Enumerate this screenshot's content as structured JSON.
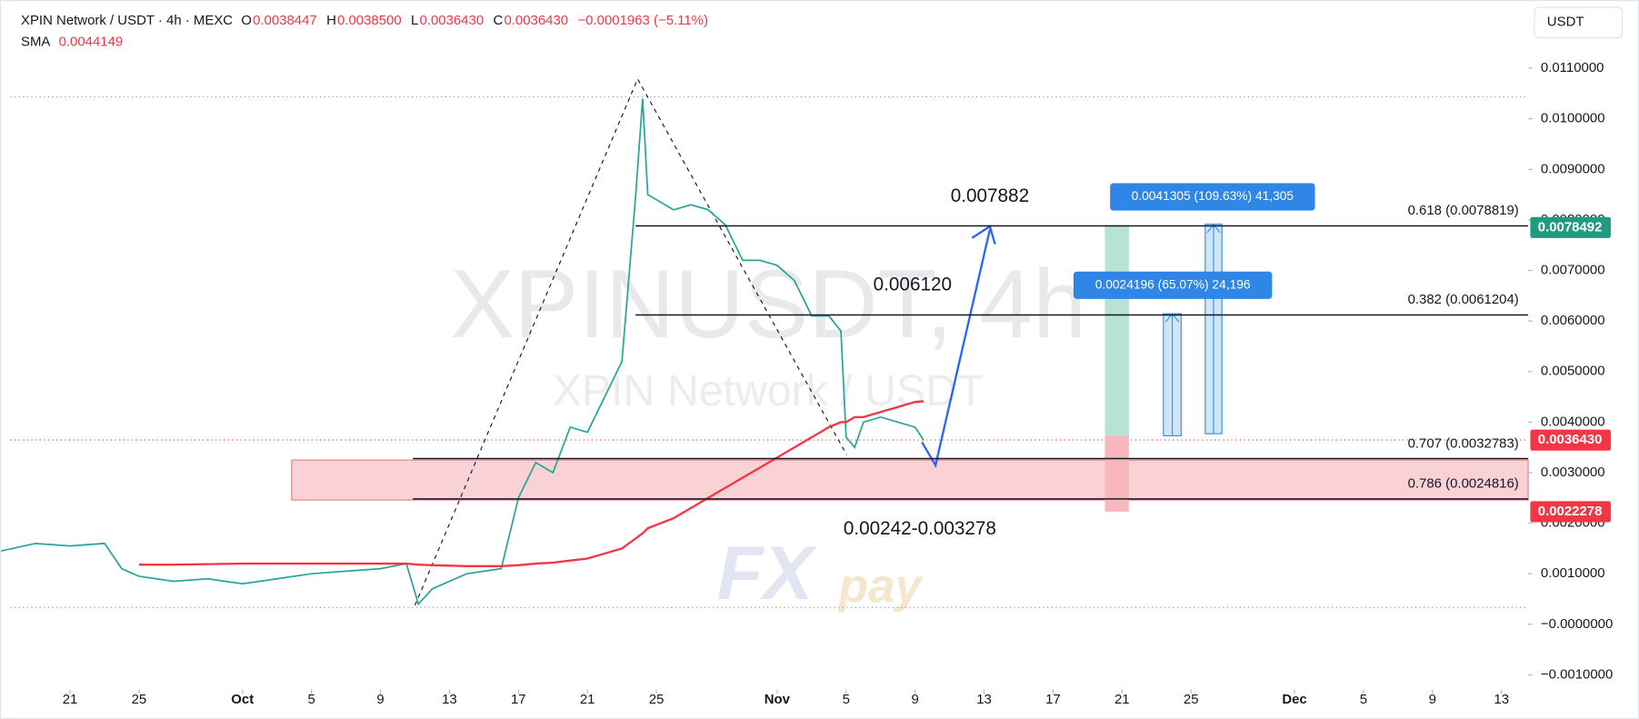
{
  "chart_data": {
    "type": "line",
    "title": "XPIN Network / USDT · 4h · MEXC",
    "ohlc": [
      {
        "key": "O",
        "value": "0.0038447"
      },
      {
        "key": "H",
        "value": "0.0038500"
      },
      {
        "key": "L",
        "value": "0.0036430"
      },
      {
        "key": "C",
        "value": "0.0036430"
      }
    ],
    "change": "−0.0001963 (−5.11%)",
    "indicator_value": "0.0044149",
    "currency": "USDT",
    "watermark": [
      "XPINUSDT, 4h",
      "XPIN Network / USDT"
    ],
    "logo": [
      "FX",
      "pay"
    ],
    "x": [
      -14,
      -12,
      -10,
      -8,
      -7,
      -6,
      -4,
      -2,
      0,
      2,
      4,
      6,
      8,
      9.5,
      10.2,
      11,
      13,
      15,
      16,
      17,
      18,
      19,
      20,
      21,
      22,
      22.8,
      23.2,
      23.5,
      25,
      26,
      27,
      28,
      29,
      30,
      31,
      32,
      33,
      34,
      34.7,
      35,
      35.5,
      36,
      37,
      38,
      39,
      39.5
    ],
    "series": [
      {
        "color": "#26a69a",
        "values": [
          0.00145,
          0.0016,
          0.00155,
          0.0016,
          0.0011,
          0.00095,
          0.00085,
          0.0009,
          0.0008,
          0.0009,
          0.001,
          0.00105,
          0.0011,
          0.0012,
          0.0004,
          0.0007,
          0.001,
          0.0011,
          0.0025,
          0.0032,
          0.003,
          0.0039,
          0.0038,
          0.0045,
          0.0052,
          0.0085,
          0.0104,
          0.0085,
          0.0082,
          0.0083,
          0.0082,
          0.0079,
          0.0072,
          0.0072,
          0.0071,
          0.0068,
          0.0061,
          0.0061,
          0.0058,
          0.0037,
          0.0035,
          0.004,
          0.0041,
          0.004,
          0.0039,
          0.00364
        ]
      },
      {
        "name": "SMA",
        "color": "#f23645",
        "values": [
          null,
          null,
          null,
          null,
          null,
          0.00118,
          0.00118,
          0.00119,
          0.0012,
          0.0012,
          0.0012,
          0.0012,
          0.0012,
          0.0012,
          0.00118,
          0.00117,
          0.00115,
          0.00115,
          0.00117,
          0.0012,
          0.00122,
          0.00126,
          0.0013,
          0.0014,
          0.0015,
          0.0017,
          0.0018,
          0.0019,
          0.0021,
          0.0023,
          0.0025,
          0.0027,
          0.0029,
          0.0031,
          0.0033,
          0.0035,
          0.0037,
          0.0039,
          0.004,
          0.004,
          0.0041,
          0.0041,
          0.0042,
          0.0043,
          0.0044,
          0.00441
        ]
      }
    ],
    "xlim": [
      -14.06,
      74.55
    ],
    "ylim": [
      -0.00129,
      0.01235
    ],
    "xticks": [
      {
        "value": -10,
        "label": "21"
      },
      {
        "value": -6,
        "label": "25"
      },
      {
        "value": 0,
        "label": "Oct"
      },
      {
        "value": 4,
        "label": "5"
      },
      {
        "value": 8,
        "label": "9"
      },
      {
        "value": 12,
        "label": "13"
      },
      {
        "value": 16,
        "label": "17"
      },
      {
        "value": 20,
        "label": "21"
      },
      {
        "value": 24,
        "label": "25"
      },
      {
        "value": 31,
        "label": "Nov"
      },
      {
        "value": 35,
        "label": "5"
      },
      {
        "value": 39,
        "label": "9"
      },
      {
        "value": 43,
        "label": "13"
      },
      {
        "value": 47,
        "label": "17"
      },
      {
        "value": 51,
        "label": "21"
      },
      {
        "value": 55,
        "label": "25"
      },
      {
        "value": 61,
        "label": "Dec"
      },
      {
        "value": 65,
        "label": "5"
      },
      {
        "value": 69,
        "label": "9"
      },
      {
        "value": 73,
        "label": "13"
      }
    ],
    "yticks": [
      {
        "value": 0.011,
        "label": "0.0110000"
      },
      {
        "value": 0.01,
        "label": "0.0100000"
      },
      {
        "value": 0.009,
        "label": "0.0090000"
      },
      {
        "value": 0.008,
        "label": "0.0080000"
      },
      {
        "value": 0.007,
        "label": "0.0070000"
      },
      {
        "value": 0.006,
        "label": "0.0060000"
      },
      {
        "value": 0.005,
        "label": "0.0050000"
      },
      {
        "value": 0.004,
        "label": "0.0040000"
      },
      {
        "value": 0.003,
        "label": "0.0030000"
      },
      {
        "value": 0.002,
        "label": "0.0020000"
      },
      {
        "value": 0.001,
        "label": "0.0010000"
      },
      {
        "value": 0,
        "label": "−0.0000000"
      },
      {
        "value": -0.001,
        "label": "−0.0010000"
      }
    ],
    "levels": [
      {
        "value": 0.0078819,
        "label": "0.618 (0.0078819)"
      },
      {
        "value": 0.0061204,
        "label": "0.382 (0.0061204)"
      },
      {
        "value": 0.0032783,
        "label": "0.707 (0.0032783)"
      },
      {
        "value": 0.0024816,
        "label": "0.786 (0.0024816)"
      }
    ],
    "targets": [
      "0.007882",
      "0.006120",
      "0.00242-0.003278"
    ],
    "measures": [
      "0.0041305 (109.63%) 41,305",
      "0.0024196 (65.07%) 24,196"
    ],
    "price_tags": [
      {
        "value": 0.0078492,
        "label": "0.0078492",
        "color": "#1f9c7e"
      },
      {
        "value": 0.003643,
        "label": "0.0036430",
        "color": "#f23645"
      },
      {
        "value": 0.0022278,
        "label": "0.0022278",
        "color": "#f23645"
      }
    ]
  }
}
